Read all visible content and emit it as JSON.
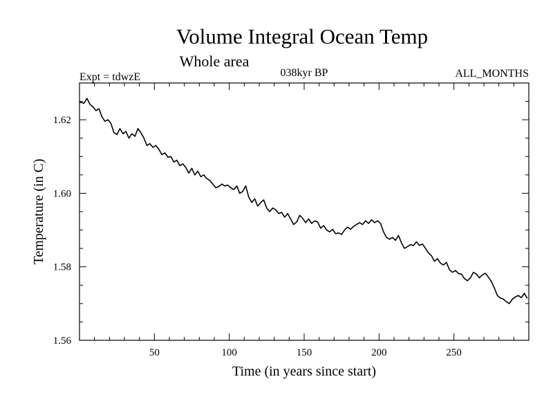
{
  "chart_data": {
    "type": "line",
    "title": "Volume Integral Ocean Temp",
    "subtitle": "Whole area",
    "header_left": "Expt = tdwzE",
    "header_center": "038kyr BP",
    "header_right": "ALL_MONTHS",
    "xlabel": "Time (in years since start)",
    "ylabel": "Temperature (in C)",
    "xlim": [
      0,
      300
    ],
    "ylim": [
      1.56,
      1.63
    ],
    "xticks": [
      50,
      100,
      150,
      200,
      250
    ],
    "xtick_labels": [
      "50",
      "100",
      "150",
      "200",
      "250"
    ],
    "yticks": [
      1.56,
      1.58,
      1.6,
      1.62
    ],
    "ytick_labels": [
      "1.56",
      "1.58",
      "1.60",
      "1.62"
    ],
    "grid": false,
    "line_color": "#000000",
    "series": [
      {
        "x": [
          0,
          3,
          5,
          7,
          9,
          11,
          13,
          15,
          17,
          19,
          21,
          23,
          25,
          27,
          29,
          31,
          33,
          35,
          37,
          39,
          41,
          43,
          45,
          47,
          49,
          51,
          53,
          55,
          57,
          59,
          61,
          63,
          65,
          67,
          69,
          71,
          73,
          75,
          77,
          79,
          81,
          83,
          85,
          87,
          89,
          91,
          93,
          95,
          97,
          99,
          101,
          103,
          105,
          107,
          109,
          111,
          113,
          115,
          117,
          119,
          121,
          123,
          125,
          127,
          129,
          131,
          133,
          135,
          137,
          139,
          141,
          143,
          145,
          147,
          149,
          151,
          153,
          155,
          157,
          159,
          161,
          163,
          165,
          167,
          169,
          171,
          173,
          175,
          177,
          179,
          181,
          183,
          185,
          187,
          189,
          191,
          193,
          195,
          197,
          199,
          201,
          203,
          205,
          207,
          209,
          211,
          213,
          215,
          217,
          219,
          221,
          223,
          225,
          227,
          229,
          231,
          233,
          235,
          237,
          239,
          241,
          243,
          245,
          247,
          249,
          251,
          253,
          255,
          257,
          259,
          261,
          263,
          265,
          267,
          269,
          271,
          273,
          275,
          277,
          279,
          281,
          283,
          285,
          287,
          289,
          291,
          293,
          295,
          297,
          299
        ],
        "values": [
          1.6248,
          1.6245,
          1.6258,
          1.6242,
          1.6235,
          1.6225,
          1.623,
          1.6208,
          1.6196,
          1.62,
          1.619,
          1.6165,
          1.616,
          1.6176,
          1.6162,
          1.6168,
          1.615,
          1.6162,
          1.6155,
          1.6176,
          1.6165,
          1.615,
          1.613,
          1.6135,
          1.6125,
          1.613,
          1.612,
          1.6105,
          1.611,
          1.6098,
          1.61,
          1.6085,
          1.609,
          1.6075,
          1.608,
          1.607,
          1.6055,
          1.6068,
          1.605,
          1.606,
          1.6045,
          1.605,
          1.604,
          1.6035,
          1.6025,
          1.6015,
          1.6018,
          1.6025,
          1.602,
          1.6022,
          1.6015,
          1.601,
          1.602,
          1.6,
          1.6005,
          1.602,
          1.599,
          1.5975,
          1.5985,
          1.5965,
          1.5975,
          1.5982,
          1.596,
          1.595,
          1.596,
          1.5955,
          1.5945,
          1.5948,
          1.5935,
          1.5945,
          1.593,
          1.5915,
          1.5922,
          1.594,
          1.5932,
          1.592,
          1.593,
          1.5918,
          1.5925,
          1.5922,
          1.5905,
          1.5912,
          1.59,
          1.5895,
          1.5902,
          1.589,
          1.5892,
          1.5888,
          1.59,
          1.5908,
          1.5902,
          1.591,
          1.5915,
          1.592,
          1.5915,
          1.5925,
          1.5918,
          1.5928,
          1.592,
          1.5925,
          1.5918,
          1.5895,
          1.588,
          1.5875,
          1.588,
          1.5872,
          1.5885,
          1.5865,
          1.585,
          1.5855,
          1.586,
          1.5858,
          1.5868,
          1.5858,
          1.5862,
          1.585,
          1.5838,
          1.583,
          1.5815,
          1.5822,
          1.581,
          1.5805,
          1.5812,
          1.5792,
          1.5785,
          1.579,
          1.5782,
          1.578,
          1.5768,
          1.5762,
          1.577,
          1.5785,
          1.578,
          1.577,
          1.5778,
          1.5782,
          1.5772,
          1.576,
          1.5742,
          1.5722,
          1.5715,
          1.5712,
          1.5705,
          1.57,
          1.5712,
          1.5718,
          1.5722,
          1.5716,
          1.5728,
          1.5714
        ]
      }
    ]
  }
}
